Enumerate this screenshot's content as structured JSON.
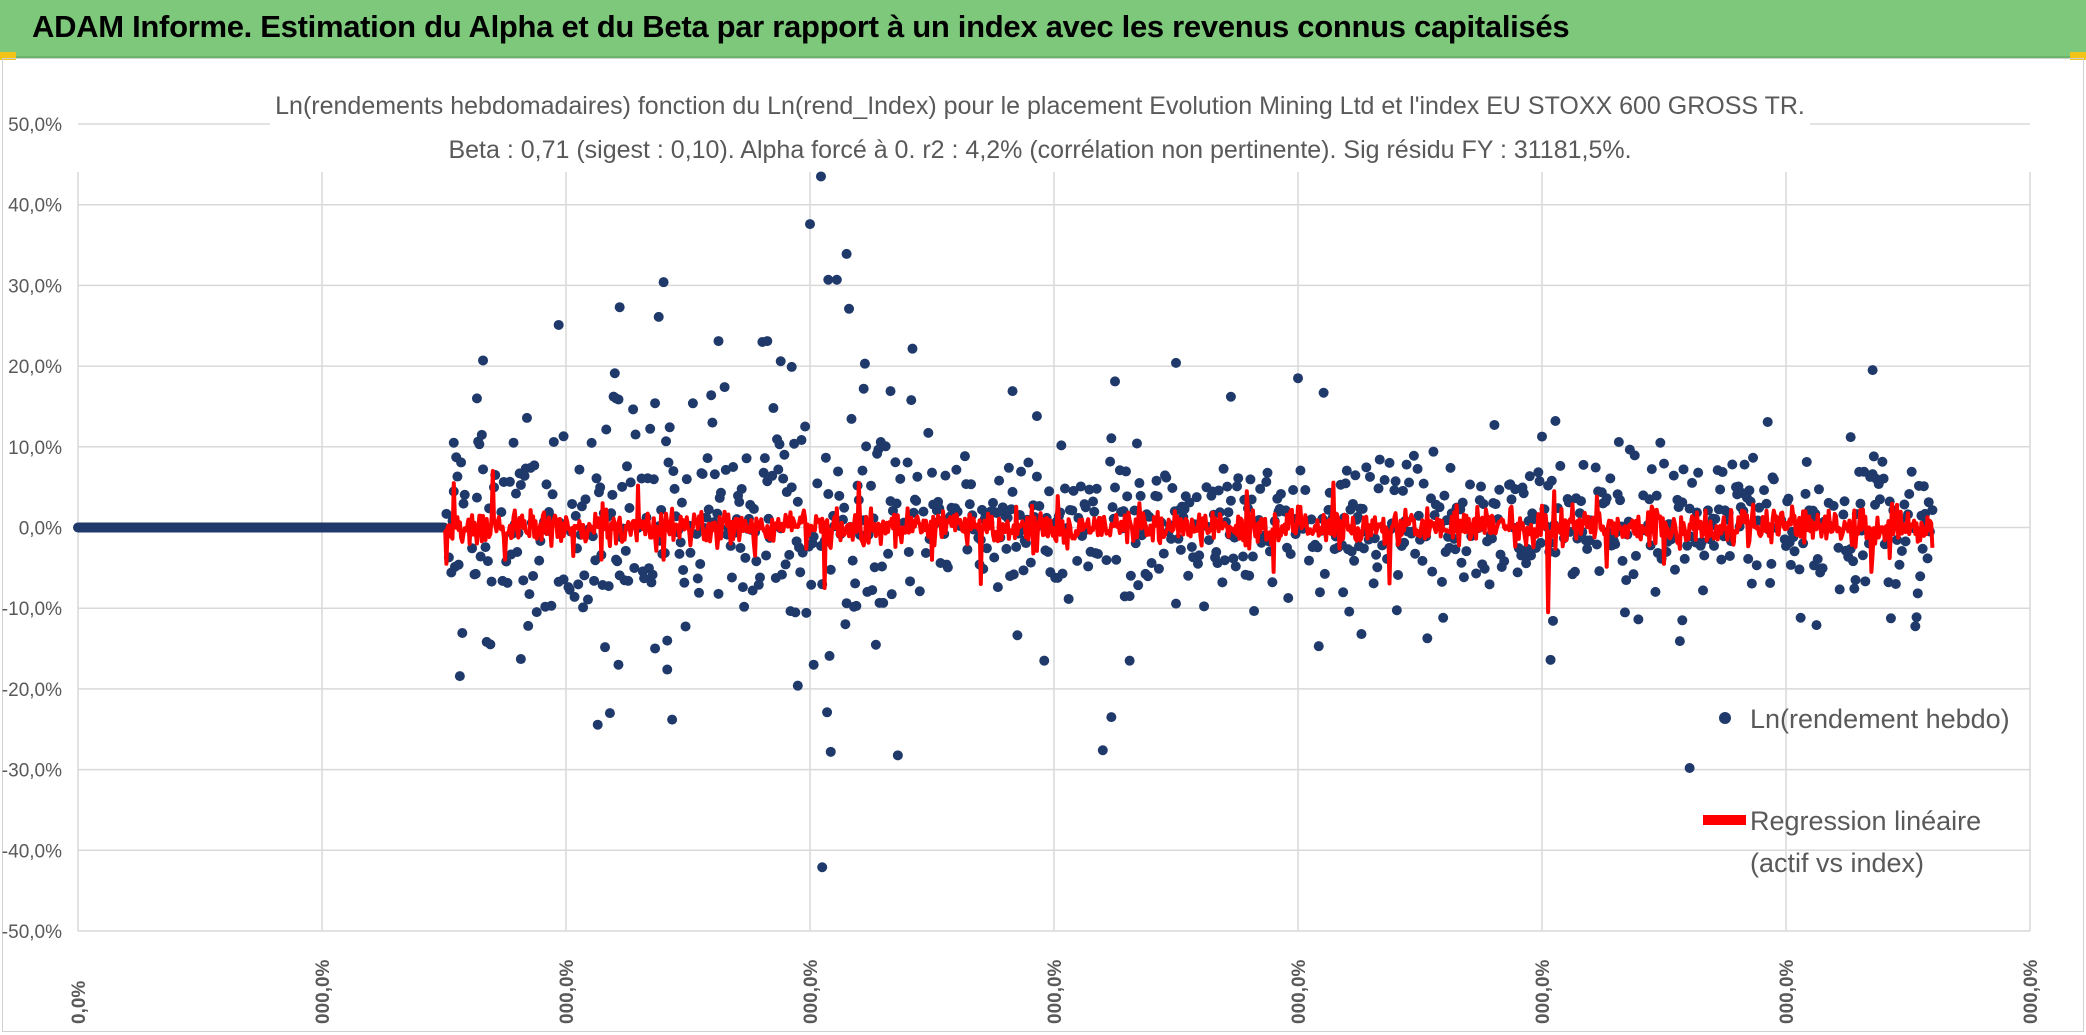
{
  "header": {
    "title": "ADAM Informe. Estimation du Alpha et du Beta par rapport à un index avec les revenus connus capitalisés"
  },
  "colors": {
    "banner": "#7dc87b",
    "points": "#1f3a6a",
    "regression": "#ff0000",
    "grid": "#d9d9d9",
    "corner": "#f3c317"
  },
  "chart_data": {
    "type": "scatter",
    "title": "Ln(rendements hebdomadaires) fonction du Ln(rend_Index) pour le placement Evolution Mining Ltd et l'index EU STOXX 600 GROSS TR.",
    "subtitle": "Beta : 0,71 (sigest : 0,10). Alpha forcé à 0. r2 : 4,2% (corrélation non pertinente). Sig résidu FY : 31181,5%.",
    "y_tick_labels": [
      "50,0%",
      "40,0%",
      "30,0%",
      "20,0%",
      "10,0%",
      "0,0%",
      "-10,0%",
      "-20,0%",
      "-30,0%",
      "-40,0%",
      "-50,0%"
    ],
    "x_tick_labels": [
      "0,0%",
      "000,0%",
      "000,0%",
      "000,0%",
      "000,0%",
      "000,0%",
      "000,0%",
      "000,0%",
      "000,0%"
    ],
    "ylim": [
      -50,
      50
    ],
    "grid": true,
    "legend_position": "right",
    "series": [
      {
        "name": "Ln(rendement hebdo)",
        "kind": "scatter",
        "zero_run": {
          "from_index": 0,
          "to_index": 300,
          "value": 0
        },
        "scatter_range": {
          "from_index": 300,
          "to_index": 1520
        },
        "outliers": [
          {
            "i": 308,
            "v": 10.5
          },
          {
            "i": 332,
            "v": 20.7
          },
          {
            "i": 327,
            "v": 16
          },
          {
            "i": 363,
            "v": -16.3
          },
          {
            "i": 398,
            "v": 11.3
          },
          {
            "i": 394,
            "v": 25.1
          },
          {
            "i": 444,
            "v": 27.3
          },
          {
            "i": 441,
            "v": 16
          },
          {
            "i": 436,
            "v": -23
          },
          {
            "i": 443,
            "v": -17
          },
          {
            "i": 476,
            "v": 26.1
          },
          {
            "i": 480,
            "v": 30.4
          },
          {
            "i": 473,
            "v": 15.4
          },
          {
            "i": 483,
            "v": -17.6
          },
          {
            "i": 525,
            "v": 23.1
          },
          {
            "i": 530,
            "v": 17.4
          },
          {
            "i": 565,
            "v": 23.1
          },
          {
            "i": 576,
            "v": 20.6
          },
          {
            "i": 585,
            "v": 19.9
          },
          {
            "i": 590,
            "v": -19.6
          },
          {
            "i": 600,
            "v": 37.6
          },
          {
            "i": 609,
            "v": 43.5
          },
          {
            "i": 615,
            "v": 30.7
          },
          {
            "i": 622,
            "v": 30.7
          },
          {
            "i": 630,
            "v": 33.9
          },
          {
            "i": 632,
            "v": 27.1
          },
          {
            "i": 645,
            "v": 20.3
          },
          {
            "i": 644,
            "v": 17.2
          },
          {
            "i": 666,
            "v": 16.9
          },
          {
            "i": 610,
            "v": -42.1
          },
          {
            "i": 617,
            "v": -27.8
          },
          {
            "i": 614,
            "v": -22.9
          },
          {
            "i": 603,
            "v": -17
          },
          {
            "i": 766,
            "v": 16.9
          },
          {
            "i": 786,
            "v": 13.8
          },
          {
            "i": 792,
            "v": -16.5
          },
          {
            "i": 850,
            "v": 18.1
          },
          {
            "i": 862,
            "v": -16.5
          },
          {
            "i": 840,
            "v": -27.6
          },
          {
            "i": 847,
            "v": -23.5
          },
          {
            "i": 900,
            "v": 20.4
          },
          {
            "i": 945,
            "v": 16.2
          },
          {
            "i": 1000,
            "v": 18.5
          },
          {
            "i": 1021,
            "v": 16.7
          },
          {
            "i": 1211,
            "v": 13.2
          },
          {
            "i": 1207,
            "v": -16.4
          },
          {
            "i": 1315,
            "v": -11.5
          },
          {
            "i": 1321,
            "v": -29.8
          },
          {
            "i": 1471,
            "v": 19.5
          },
          {
            "i": 1297,
            "v": 10.5
          },
          {
            "i": 1453,
            "v": 11.2
          }
        ]
      },
      {
        "name": "Regression linéaire (actif vs index)",
        "kind": "line",
        "beta": 0.71,
        "spikes": [
          {
            "i": 302,
            "v": -4.5
          },
          {
            "i": 308,
            "v": 5.5
          },
          {
            "i": 340,
            "v": 7
          },
          {
            "i": 350,
            "v": -4
          },
          {
            "i": 430,
            "v": 3
          },
          {
            "i": 480,
            "v": -4
          },
          {
            "i": 555,
            "v": -3.5
          },
          {
            "i": 612,
            "v": -7.5
          },
          {
            "i": 640,
            "v": 5.5
          },
          {
            "i": 700,
            "v": -4
          },
          {
            "i": 740,
            "v": -7
          },
          {
            "i": 870,
            "v": 3
          },
          {
            "i": 958,
            "v": 4.5
          },
          {
            "i": 980,
            "v": -5.5
          },
          {
            "i": 1205,
            "v": -10.5
          },
          {
            "i": 1210,
            "v": 4.5
          },
          {
            "i": 1300,
            "v": -4.5
          },
          {
            "i": 1470,
            "v": -5.5
          }
        ]
      }
    ],
    "legend": [
      {
        "label": "Ln(rendement hebdo)"
      },
      {
        "label_line1": "Regression linéaire",
        "label_line2": "(actif vs index)"
      }
    ]
  }
}
